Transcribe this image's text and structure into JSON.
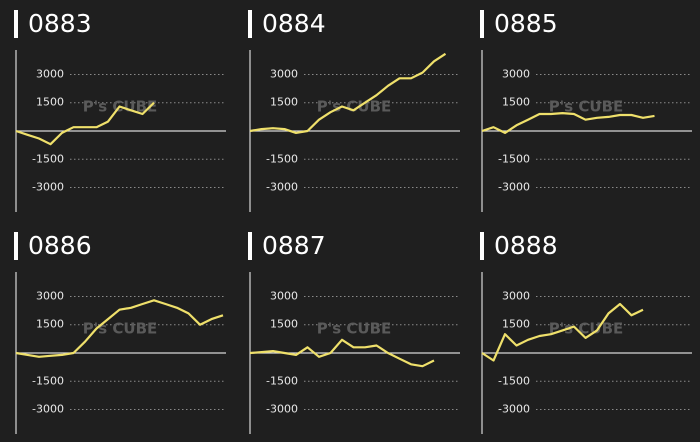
{
  "watermark": "P's CUBE",
  "chart_data": [
    {
      "type": "line",
      "title": "0883",
      "color": "#efe06b",
      "grid": true,
      "ylim": [
        -4300,
        4300
      ],
      "yticks": [
        3000,
        1500,
        -1500,
        -3000
      ],
      "values": [
        0,
        -200,
        -400,
        -700,
        -100,
        200,
        200,
        200,
        500,
        1300,
        1100,
        900,
        1500
      ]
    },
    {
      "type": "line",
      "title": "0884",
      "color": "#efe06b",
      "grid": true,
      "ylim": [
        -4300,
        4300
      ],
      "yticks": [
        3000,
        1500,
        -1500,
        -3000
      ],
      "values": [
        0,
        100,
        150,
        100,
        -100,
        0,
        600,
        1000,
        1300,
        1100,
        1500,
        1900,
        2400,
        2800,
        2800,
        3100,
        3700,
        4100
      ]
    },
    {
      "type": "line",
      "title": "0885",
      "color": "#efe06b",
      "grid": true,
      "ylim": [
        -4300,
        4300
      ],
      "yticks": [
        3000,
        1500,
        -1500,
        -3000
      ],
      "values": [
        0,
        200,
        -100,
        300,
        600,
        900,
        900,
        950,
        900,
        600,
        700,
        750,
        850,
        850,
        700,
        800
      ]
    },
    {
      "type": "line",
      "title": "0886",
      "color": "#efe06b",
      "grid": true,
      "ylim": [
        -4300,
        4300
      ],
      "yticks": [
        3000,
        1500,
        -1500,
        -3000
      ],
      "values": [
        0,
        -100,
        -200,
        -150,
        -100,
        0,
        600,
        1300,
        1800,
        2300,
        2400,
        2600,
        2800,
        2600,
        2400,
        2100,
        1500,
        1800,
        2000
      ]
    },
    {
      "type": "line",
      "title": "0887",
      "color": "#efe06b",
      "grid": true,
      "ylim": [
        -4300,
        4300
      ],
      "yticks": [
        3000,
        1500,
        -1500,
        -3000
      ],
      "values": [
        0,
        50,
        100,
        0,
        -100,
        300,
        -200,
        0,
        700,
        300,
        300,
        400,
        0,
        -300,
        -600,
        -700,
        -400
      ]
    },
    {
      "type": "line",
      "title": "0888",
      "color": "#efe06b",
      "grid": true,
      "ylim": [
        -4300,
        4300
      ],
      "yticks": [
        3000,
        1500,
        -1500,
        -3000
      ],
      "values": [
        0,
        -400,
        1000,
        400,
        700,
        900,
        1000,
        1200,
        1400,
        800,
        1200,
        2100,
        2600,
        2000,
        2300
      ]
    }
  ]
}
